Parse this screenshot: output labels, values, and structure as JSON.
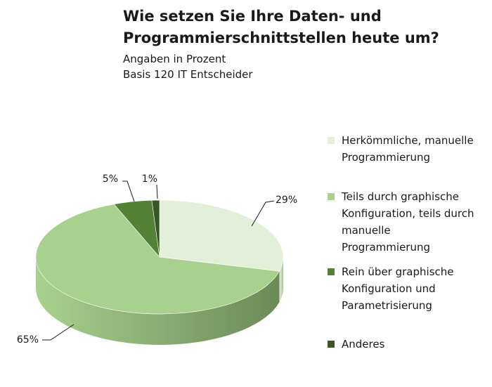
{
  "header": {
    "title_line1": "Wie setzen Sie Ihre Daten- und",
    "title_line2": "Programmierschnittstellen heute um?",
    "subtitle1": "Angaben in Prozent",
    "subtitle2": "Basis 120 IT Entscheider"
  },
  "chart_data": {
    "type": "pie",
    "title": "Wie setzen Sie Ihre Daten- und Programmierschnittstellen heute um?",
    "unit": "Prozent",
    "base": "Basis 120 IT Entscheider",
    "style": "3d-pie",
    "legend_position": "right",
    "slices": [
      {
        "label": "Herkömmliche, manuelle Programmierung",
        "value": 29,
        "value_label": "29%",
        "color": "#e3efd8",
        "side_color": "#aebfa0"
      },
      {
        "label": "Teils durch graphische Konfiguration, teils durch manuelle Programmierung",
        "value": 65,
        "value_label": "65%",
        "color": "#a9d18e",
        "side_color": "#6b8a57"
      },
      {
        "label": "Rein über graphische Konfiguration und Parametrisierung",
        "value": 5,
        "value_label": "5%",
        "color": "#538135",
        "side_color": "#385723"
      },
      {
        "label": "Anderes",
        "value": 1,
        "value_label": "1%",
        "color": "#375623",
        "side_color": "#253a18"
      }
    ]
  },
  "legend": {
    "items": [
      {
        "line1": "Herkömmliche, manuelle",
        "line2": "Programmierung",
        "line3": "",
        "line4": ""
      },
      {
        "line1": "Teils durch graphische",
        "line2": "Konfiguration, teils durch",
        "line3": "manuelle",
        "line4": "Programmierung"
      },
      {
        "line1": "Rein über graphische",
        "line2": "Konfiguration und",
        "line3": "Parametrisierung",
        "line4": ""
      },
      {
        "line1": "Anderes",
        "line2": "",
        "line3": "",
        "line4": ""
      }
    ]
  }
}
